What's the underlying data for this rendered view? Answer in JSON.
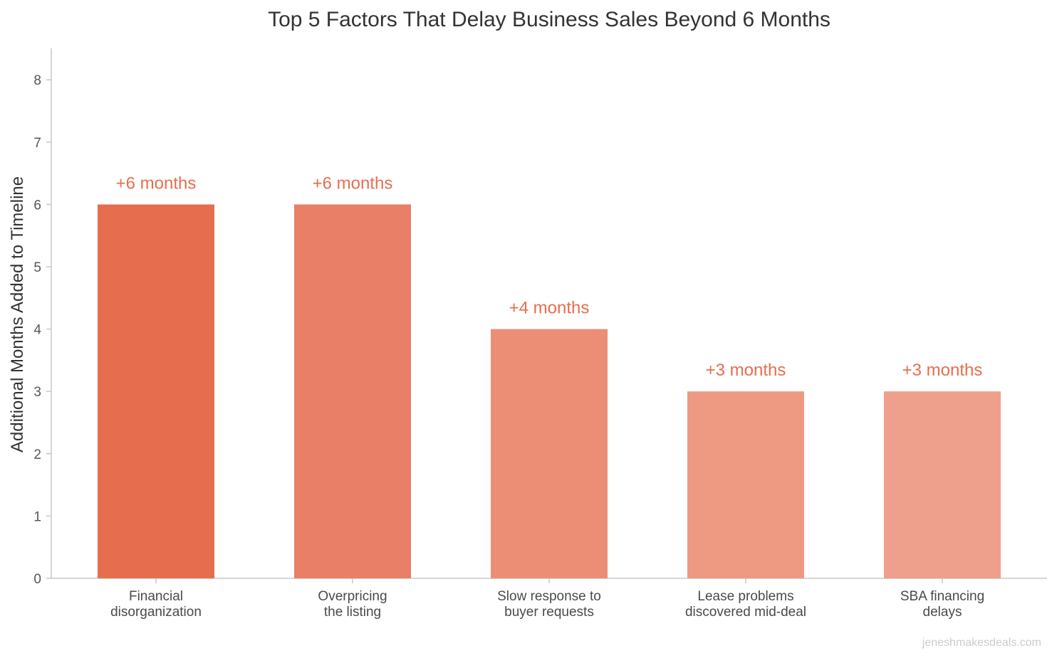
{
  "chart_data": {
    "type": "bar",
    "title": "Top 5 Factors That Delay Business Sales Beyond 6 Months",
    "xlabel": "",
    "ylabel": "Additional Months Added to Timeline",
    "categories": [
      [
        "Financial",
        "disorganization"
      ],
      [
        "Overpricing",
        "the listing"
      ],
      [
        "Slow response to",
        "buyer requests"
      ],
      [
        "Lease problems",
        "discovered mid-deal"
      ],
      [
        "SBA financing",
        "delays"
      ]
    ],
    "values": [
      6,
      6,
      4,
      3,
      3
    ],
    "data_labels": [
      "+6 months",
      "+6 months",
      "+4 months",
      "+3 months",
      "+3 months"
    ],
    "bar_colors": [
      "#e66e4f",
      "#e87f66",
      "#ec8e76",
      "#ee9a83",
      "#efa08c"
    ],
    "label_color": "#e66e4f",
    "ylim": [
      0,
      8.5
    ],
    "yticks": [
      0,
      1,
      2,
      3,
      4,
      5,
      6,
      7,
      8
    ],
    "grid": false,
    "legend": "none"
  },
  "watermark": "jeneshmakesdeals.com"
}
